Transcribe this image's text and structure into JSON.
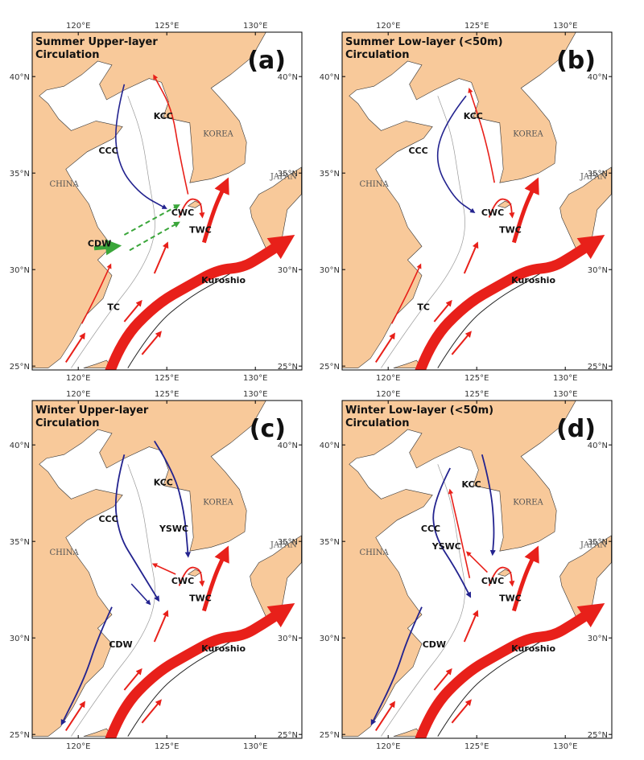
{
  "x_ticks": [
    "120°E",
    "125°E",
    "130°E"
  ],
  "y_ticks": [
    "25°N",
    "30°N",
    "35°N",
    "40°N"
  ],
  "places": [
    "CHINA",
    "KOREA",
    "JAPAN"
  ],
  "panels": [
    {
      "title": [
        "Summer Upper-layer",
        "Circulation"
      ],
      "tag": "(a)",
      "currents": [
        "KCC",
        "CCC",
        "CWC",
        "TWC",
        "CDW",
        "Kuroshio",
        "TC"
      ]
    },
    {
      "title": [
        "Summer Low-layer (<50m)",
        "Circulation"
      ],
      "tag": "(b)",
      "currents": [
        "KCC",
        "CCC",
        "CWC",
        "TWC",
        "Kuroshio",
        "TC"
      ]
    },
    {
      "title": [
        "Winter Upper-layer",
        "Circulation"
      ],
      "tag": "(c)",
      "currents": [
        "KCC",
        "CCC",
        "YSWC",
        "CWC",
        "TWC",
        "CDW",
        "Kuroshio"
      ]
    },
    {
      "title": [
        "Winter Low-layer (<50m)",
        "Circulation"
      ],
      "tag": "(d)",
      "currents": [
        "KCC",
        "CCC",
        "YSWC",
        "CWC",
        "TWC",
        "CDW",
        "Kuroshio"
      ]
    }
  ]
}
